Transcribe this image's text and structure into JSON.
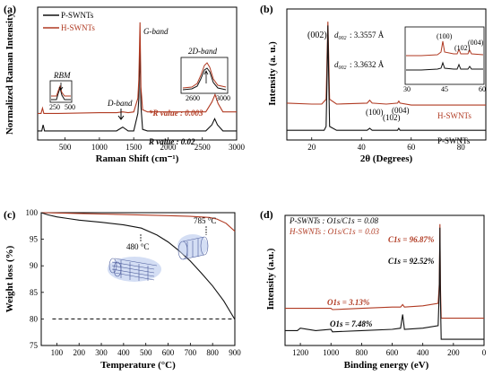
{
  "colors": {
    "black": "#111111",
    "red": "#b03a22"
  },
  "chart_data": [
    {
      "panel": "(a)",
      "type": "line",
      "xlabel": "Raman Shift (cm⁻¹)",
      "ylabel": "Normalized Raman Intensity",
      "xlim": [
        100,
        3000
      ],
      "xticks": [
        "500",
        "1000",
        "1500",
        "2000",
        "2500",
        "3000"
      ],
      "legend_position": "top-left",
      "series": [
        {
          "name": "P-SWNTs",
          "color": "#111111",
          "points": [
            [
              100,
              0.12
            ],
            [
              160,
              0.12
            ],
            [
              180,
              0.2
            ],
            [
              200,
              0.12
            ],
            [
              400,
              0.12
            ],
            [
              1000,
              0.12
            ],
            [
              1250,
              0.12
            ],
            [
              1340,
              0.17
            ],
            [
              1420,
              0.12
            ],
            [
              1500,
              0.12
            ],
            [
              1560,
              0.35
            ],
            [
              1575,
              0.55
            ],
            [
              1592,
              1.25
            ],
            [
              1605,
              0.45
            ],
            [
              1630,
              0.14
            ],
            [
              1700,
              0.12
            ],
            [
              2550,
              0.12
            ],
            [
              2640,
              0.2
            ],
            [
              2680,
              0.28
            ],
            [
              2720,
              0.2
            ],
            [
              2800,
              0.12
            ],
            [
              3000,
              0.12
            ]
          ]
        },
        {
          "name": "H-SWNTs",
          "color": "#b03a22",
          "points": [
            [
              100,
              0.35
            ],
            [
              150,
              0.35
            ],
            [
              170,
              0.42
            ],
            [
              190,
              0.35
            ],
            [
              400,
              0.35
            ],
            [
              1000,
              0.36
            ],
            [
              1250,
              0.36
            ],
            [
              1340,
              0.37
            ],
            [
              1420,
              0.36
            ],
            [
              1500,
              0.37
            ],
            [
              1560,
              0.55
            ],
            [
              1575,
              0.8
            ],
            [
              1592,
              1.55
            ],
            [
              1605,
              0.7
            ],
            [
              1630,
              0.4
            ],
            [
              1700,
              0.37
            ],
            [
              2550,
              0.37
            ],
            [
              2640,
              0.5
            ],
            [
              2685,
              0.6
            ],
            [
              2730,
              0.48
            ],
            [
              2800,
              0.37
            ],
            [
              3000,
              0.37
            ]
          ]
        }
      ],
      "annotations": {
        "g_band": "G-band",
        "d_band": "D-band",
        "rbm": "RBM",
        "two_d_band": "2D-band",
        "h_r_value": "*R value : 0.003",
        "p_r_value": "R value : 0.02",
        "inset_rbm_ticks": [
          "250",
          "500"
        ],
        "inset_2d_ticks": [
          "2600",
          "3000"
        ]
      }
    },
    {
      "panel": "(b)",
      "type": "line",
      "xlabel": "2θ (Degrees)",
      "ylabel": "Intensity (a. u.)",
      "xlim": [
        10,
        90
      ],
      "xticks": [
        "20",
        "40",
        "60",
        "80"
      ],
      "series": [
        {
          "name": "H-SWNTs",
          "color": "#b03a22",
          "points": [
            [
              10,
              0.38
            ],
            [
              20,
              0.37
            ],
            [
              24,
              0.37
            ],
            [
              25.8,
              0.42
            ],
            [
              26.2,
              0.9
            ],
            [
              26.5,
              1.22
            ],
            [
              26.8,
              0.9
            ],
            [
              27.2,
              0.42
            ],
            [
              30,
              0.37
            ],
            [
              42.3,
              0.38
            ],
            [
              43.3,
              0.41
            ],
            [
              44.3,
              0.38
            ],
            [
              50,
              0.37
            ],
            [
              54.5,
              0.38
            ],
            [
              55,
              0.4
            ],
            [
              55.5,
              0.38
            ],
            [
              60,
              0.36
            ],
            [
              90,
              0.36
            ]
          ]
        },
        {
          "name": "P-SWNTs",
          "color": "#111111",
          "points": [
            [
              10,
              0.1
            ],
            [
              20,
              0.1
            ],
            [
              25,
              0.1
            ],
            [
              25.8,
              0.14
            ],
            [
              26.2,
              0.7
            ],
            [
              26.5,
              1.18
            ],
            [
              26.8,
              0.7
            ],
            [
              27.2,
              0.14
            ],
            [
              30,
              0.1
            ],
            [
              42.3,
              0.1
            ],
            [
              43.3,
              0.12
            ],
            [
              44.3,
              0.1
            ],
            [
              50,
              0.1
            ],
            [
              54.5,
              0.1
            ],
            [
              55,
              0.12
            ],
            [
              55.5,
              0.1
            ],
            [
              60,
              0.1
            ],
            [
              90,
              0.1
            ]
          ]
        }
      ],
      "annotations": {
        "peak_002": "(002)",
        "d002_h": ": 3.3557 Å",
        "d002_p": ": 3.3632 Å",
        "peak_100": "(100)",
        "peak_102": "(102)",
        "peak_004": "(004)",
        "label_h": "H-SWNTs",
        "label_p": "P-SWNTs",
        "inset_ticks": [
          "30",
          "45",
          "60"
        ],
        "inset_100": "(100)",
        "inset_102": "(102)",
        "inset_004": "(004)"
      }
    },
    {
      "panel": "(c)",
      "type": "line",
      "xlabel": "Temperature (°C)",
      "ylabel": "Weight loss (%)",
      "xlim": [
        30,
        900
      ],
      "ylim": [
        75,
        100
      ],
      "xticks": [
        "100",
        "200",
        "300",
        "400",
        "500",
        "600",
        "700",
        "800",
        "900"
      ],
      "yticks": [
        "75",
        "80",
        "85",
        "90",
        "95",
        "100"
      ],
      "series": [
        {
          "name": "H-SWNTs",
          "color": "#b03a22",
          "points": [
            [
              30,
              100
            ],
            [
              100,
              99.95
            ],
            [
              200,
              99.85
            ],
            [
              300,
              99.75
            ],
            [
              400,
              99.65
            ],
            [
              500,
              99.55
            ],
            [
              600,
              99.45
            ],
            [
              700,
              99.3
            ],
            [
              785,
              99.1
            ],
            [
              820,
              98.8
            ],
            [
              860,
              98.0
            ],
            [
              900,
              96.5
            ]
          ]
        },
        {
          "name": "P-SWNTs",
          "color": "#111111",
          "points": [
            [
              30,
              100
            ],
            [
              60,
              99.6
            ],
            [
              100,
              99.2
            ],
            [
              150,
              98.9
            ],
            [
              200,
              98.6
            ],
            [
              300,
              98.2
            ],
            [
              400,
              97.7
            ],
            [
              480,
              97.1
            ],
            [
              550,
              95.8
            ],
            [
              600,
              94.5
            ],
            [
              650,
              92.8
            ],
            [
              700,
              90.9
            ],
            [
              750,
              88.6
            ],
            [
              800,
              86.2
            ],
            [
              850,
              83.4
            ],
            [
              900,
              79.9
            ]
          ]
        }
      ],
      "reference_level": 80,
      "annotations": {
        "temp_785": "785 °C",
        "temp_480": "480 °C"
      }
    },
    {
      "panel": "(d)",
      "type": "line",
      "xlabel": "Binding energy (eV)",
      "ylabel": "Intensity (a.u.)",
      "xlim": [
        1300,
        0
      ],
      "xticks": [
        "1200",
        "1000",
        "800",
        "600",
        "400",
        "200",
        "0"
      ],
      "series": [
        {
          "name": "H-SWNTs",
          "color": "#b03a22",
          "points": [
            [
              1300,
              0.3
            ],
            [
              1200,
              0.3
            ],
            [
              1000,
              0.3
            ],
            [
              990,
              0.29
            ],
            [
              800,
              0.3
            ],
            [
              600,
              0.31
            ],
            [
              545,
              0.31
            ],
            [
              532,
              0.33
            ],
            [
              520,
              0.31
            ],
            [
              400,
              0.32
            ],
            [
              300,
              0.34
            ],
            [
              292,
              0.5
            ],
            [
              288,
              0.98
            ],
            [
              285,
              0.5
            ],
            [
              280,
              0.22
            ],
            [
              200,
              0.22
            ],
            [
              0,
              0.22
            ]
          ]
        },
        {
          "name": "P-SWNTs",
          "color": "#111111",
          "points": [
            [
              1300,
              0.12
            ],
            [
              1220,
              0.12
            ],
            [
              1200,
              0.14
            ],
            [
              1100,
              0.12
            ],
            [
              1000,
              0.13
            ],
            [
              990,
              0.11
            ],
            [
              800,
              0.12
            ],
            [
              600,
              0.13
            ],
            [
              545,
              0.14
            ],
            [
              532,
              0.25
            ],
            [
              520,
              0.13
            ],
            [
              400,
              0.14
            ],
            [
              300,
              0.16
            ],
            [
              292,
              0.45
            ],
            [
              288,
              0.95
            ],
            [
              285,
              0.4
            ],
            [
              280,
              0.05
            ],
            [
              200,
              0.05
            ],
            [
              0,
              0.05
            ]
          ]
        }
      ],
      "annotations": {
        "p_ratio": "P-SWNTs : O1s/C1s = 0.08",
        "h_ratio": "H-SWNTs : O1s/C1s = 0.03",
        "h_c1s": "C1s = 96.87%",
        "p_c1s": "C1s = 92.52%",
        "h_o1s": "O1s = 3.13%",
        "p_o1s": "O1s = 7.48%"
      }
    }
  ],
  "legend_a": {
    "p": "P-SWNTs",
    "h": "H-SWNTs"
  },
  "panel_labels": {
    "a": "(a)",
    "b": "(b)",
    "c": "(c)",
    "d": "(d)"
  }
}
